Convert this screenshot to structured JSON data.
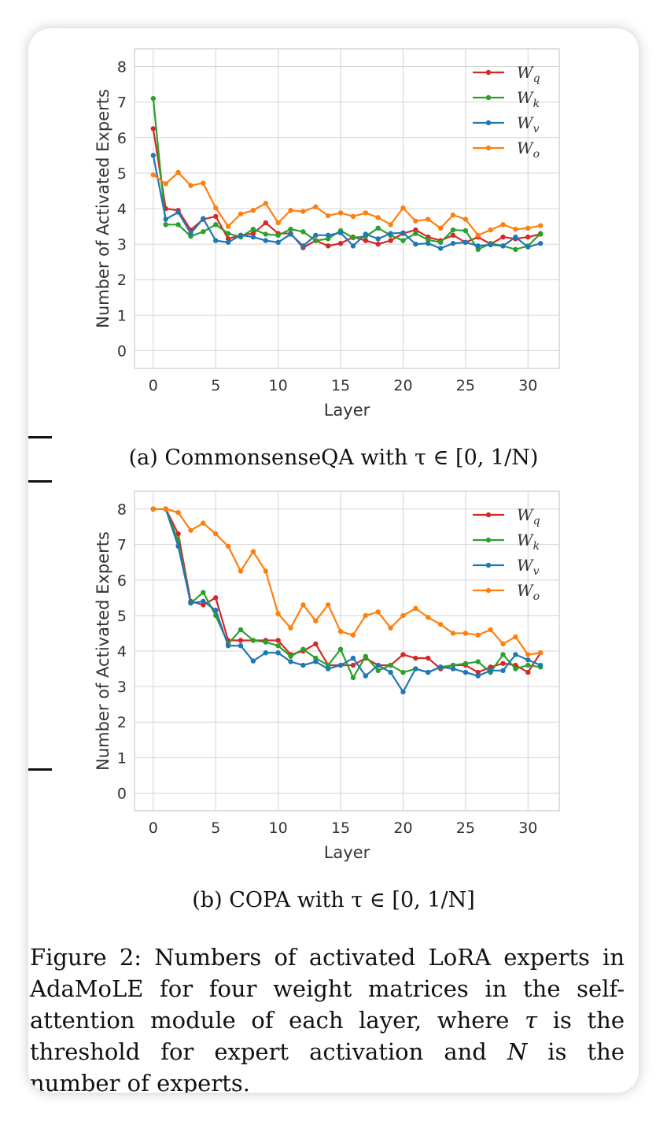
{
  "chart_data": [
    {
      "type": "line",
      "caption": "(a) CommonsenseQA with τ ∈ [0, 1/N)",
      "xlabel": "Layer",
      "ylabel": "Number of Activated Experts",
      "xlim": [
        -1.5,
        32.5
      ],
      "ylim": [
        -0.5,
        8.5
      ],
      "xticks": [
        0,
        5,
        10,
        15,
        20,
        25,
        30
      ],
      "yticks": [
        0,
        1,
        2,
        3,
        4,
        5,
        6,
        7,
        8
      ],
      "grid": true,
      "legend_position": "top-right",
      "x": [
        0,
        1,
        2,
        3,
        4,
        5,
        6,
        7,
        8,
        9,
        10,
        11,
        12,
        13,
        14,
        15,
        16,
        17,
        18,
        19,
        20,
        21,
        22,
        23,
        24,
        25,
        26,
        27,
        28,
        29,
        30,
        31
      ],
      "series": [
        {
          "name": "W_q",
          "label_base": "W",
          "label_sub": "q",
          "color": "#d62728",
          "values": [
            6.25,
            4.0,
            3.95,
            3.4,
            3.7,
            3.78,
            3.15,
            3.25,
            3.3,
            3.6,
            3.3,
            3.3,
            2.9,
            3.1,
            2.95,
            3.02,
            3.2,
            3.1,
            3.0,
            3.1,
            3.3,
            3.4,
            3.2,
            3.1,
            3.25,
            3.05,
            3.2,
            3.0,
            3.2,
            3.15,
            3.2,
            3.28
          ]
        },
        {
          "name": "W_k",
          "label_base": "W",
          "label_sub": "k",
          "color": "#2ca02c",
          "values": [
            7.1,
            3.55,
            3.55,
            3.22,
            3.35,
            3.55,
            3.3,
            3.2,
            3.42,
            3.28,
            3.25,
            3.42,
            3.35,
            3.1,
            3.15,
            3.38,
            3.18,
            3.22,
            3.45,
            3.25,
            3.1,
            3.3,
            3.12,
            3.05,
            3.4,
            3.38,
            2.85,
            3.02,
            2.95,
            2.85,
            2.95,
            3.3
          ]
        },
        {
          "name": "W_v",
          "label_base": "W",
          "label_sub": "v",
          "color": "#1f77b4",
          "values": [
            5.5,
            3.7,
            3.9,
            3.3,
            3.72,
            3.1,
            3.05,
            3.25,
            3.2,
            3.1,
            3.05,
            3.28,
            2.95,
            3.25,
            3.25,
            3.32,
            2.95,
            3.28,
            3.15,
            3.3,
            3.32,
            3.0,
            3.02,
            2.88,
            3.02,
            3.05,
            2.95,
            2.98,
            2.95,
            3.2,
            2.92,
            3.02
          ]
        },
        {
          "name": "W_o",
          "label_base": "W",
          "label_sub": "o",
          "color": "#ff7f0e",
          "values": [
            4.95,
            4.7,
            5.02,
            4.65,
            4.72,
            4.02,
            3.5,
            3.85,
            3.95,
            4.15,
            3.6,
            3.95,
            3.92,
            4.05,
            3.8,
            3.88,
            3.78,
            3.88,
            3.75,
            3.55,
            4.02,
            3.65,
            3.7,
            3.45,
            3.82,
            3.7,
            3.25,
            3.4,
            3.55,
            3.42,
            3.45,
            3.52
          ]
        }
      ]
    },
    {
      "type": "line",
      "caption": "(b) COPA with τ ∈ [0, 1/N]",
      "xlabel": "Layer",
      "ylabel": "Number of Activated Experts",
      "xlim": [
        -1.5,
        32.5
      ],
      "ylim": [
        -0.5,
        8.5
      ],
      "xticks": [
        0,
        5,
        10,
        15,
        20,
        25,
        30
      ],
      "yticks": [
        0,
        1,
        2,
        3,
        4,
        5,
        6,
        7,
        8
      ],
      "grid": true,
      "legend_position": "top-right",
      "x": [
        0,
        1,
        2,
        3,
        4,
        5,
        6,
        7,
        8,
        9,
        10,
        11,
        12,
        13,
        14,
        15,
        16,
        17,
        18,
        19,
        20,
        21,
        22,
        23,
        24,
        25,
        26,
        27,
        28,
        29,
        30,
        31
      ],
      "series": [
        {
          "name": "W_q",
          "label_base": "W",
          "label_sub": "q",
          "color": "#d62728",
          "values": [
            8.0,
            8.0,
            7.3,
            5.4,
            5.3,
            5.5,
            4.3,
            4.3,
            4.3,
            4.3,
            4.3,
            3.9,
            4.0,
            4.2,
            3.6,
            3.6,
            3.6,
            3.8,
            3.6,
            3.6,
            3.9,
            3.8,
            3.8,
            3.5,
            3.6,
            3.6,
            3.4,
            3.55,
            3.65,
            3.6,
            3.4,
            3.95
          ]
        },
        {
          "name": "W_k",
          "label_base": "W",
          "label_sub": "k",
          "color": "#2ca02c",
          "values": [
            8.0,
            8.0,
            7.1,
            5.35,
            5.65,
            5.0,
            4.2,
            4.6,
            4.3,
            4.25,
            4.15,
            3.85,
            4.05,
            3.8,
            3.6,
            4.05,
            3.25,
            3.85,
            3.45,
            3.6,
            3.4,
            3.5,
            3.4,
            3.55,
            3.6,
            3.65,
            3.7,
            3.4,
            3.9,
            3.5,
            3.6,
            3.55
          ]
        },
        {
          "name": "W_v",
          "label_base": "W",
          "label_sub": "v",
          "color": "#1f77b4",
          "values": [
            8.0,
            8.0,
            6.95,
            5.35,
            5.4,
            5.15,
            4.15,
            4.15,
            3.72,
            3.95,
            3.95,
            3.7,
            3.6,
            3.7,
            3.5,
            3.6,
            3.8,
            3.3,
            3.6,
            3.4,
            2.85,
            3.5,
            3.4,
            3.55,
            3.5,
            3.4,
            3.3,
            3.45,
            3.45,
            3.9,
            3.75,
            3.6
          ]
        },
        {
          "name": "W_o",
          "label_base": "W",
          "label_sub": "o",
          "color": "#ff7f0e",
          "values": [
            8.0,
            8.0,
            7.9,
            7.4,
            7.6,
            7.3,
            6.95,
            6.25,
            6.8,
            6.25,
            5.05,
            4.65,
            5.3,
            4.85,
            5.3,
            4.55,
            4.45,
            5.0,
            5.1,
            4.65,
            5.0,
            5.2,
            4.95,
            4.75,
            4.5,
            4.5,
            4.45,
            4.6,
            4.2,
            4.4,
            3.9,
            3.95
          ]
        }
      ]
    }
  ],
  "figure_caption": {
    "label": "Figure 2:",
    "text_before_tau": "Numbers of activated LoRA experts in AdaMoLE for four weight matrices in the self-attention module of each layer, where ",
    "tau": "τ",
    "text_after_tau": " is the threshold for expert activation and ",
    "n": "N",
    "text_after_n": " is the number of experts."
  }
}
